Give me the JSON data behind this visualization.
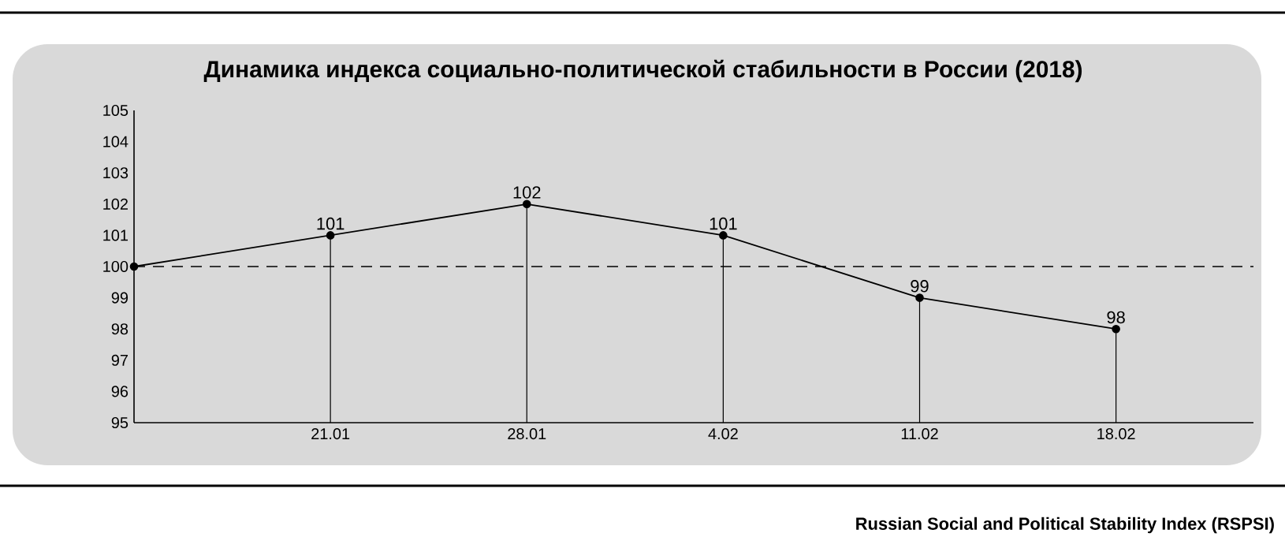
{
  "chart_data": {
    "type": "line",
    "title": "Динамика индекса социально-политической стабильности в России (2018)",
    "categories": [
      null,
      "21.01",
      "28.01",
      "4.02",
      "11.02",
      "18.02"
    ],
    "series": [
      {
        "color": "#000000",
        "values": [
          100,
          101,
          102,
          101,
          99,
          98
        ],
        "value_labels": [
          null,
          "101",
          "102",
          "101",
          "99",
          "98"
        ]
      }
    ],
    "ylim": [
      95,
      105
    ],
    "yticks": [
      95,
      96,
      97,
      98,
      99,
      100,
      101,
      102,
      103,
      104,
      105
    ],
    "ref_lines": [
      {
        "axis": "y",
        "value": 100,
        "line_style": "dashed",
        "color": "#000000"
      }
    ],
    "marker": "circle",
    "grid": false,
    "annotations": [
      "Russian Social and Political Stability Index (RSPSI)"
    ]
  }
}
